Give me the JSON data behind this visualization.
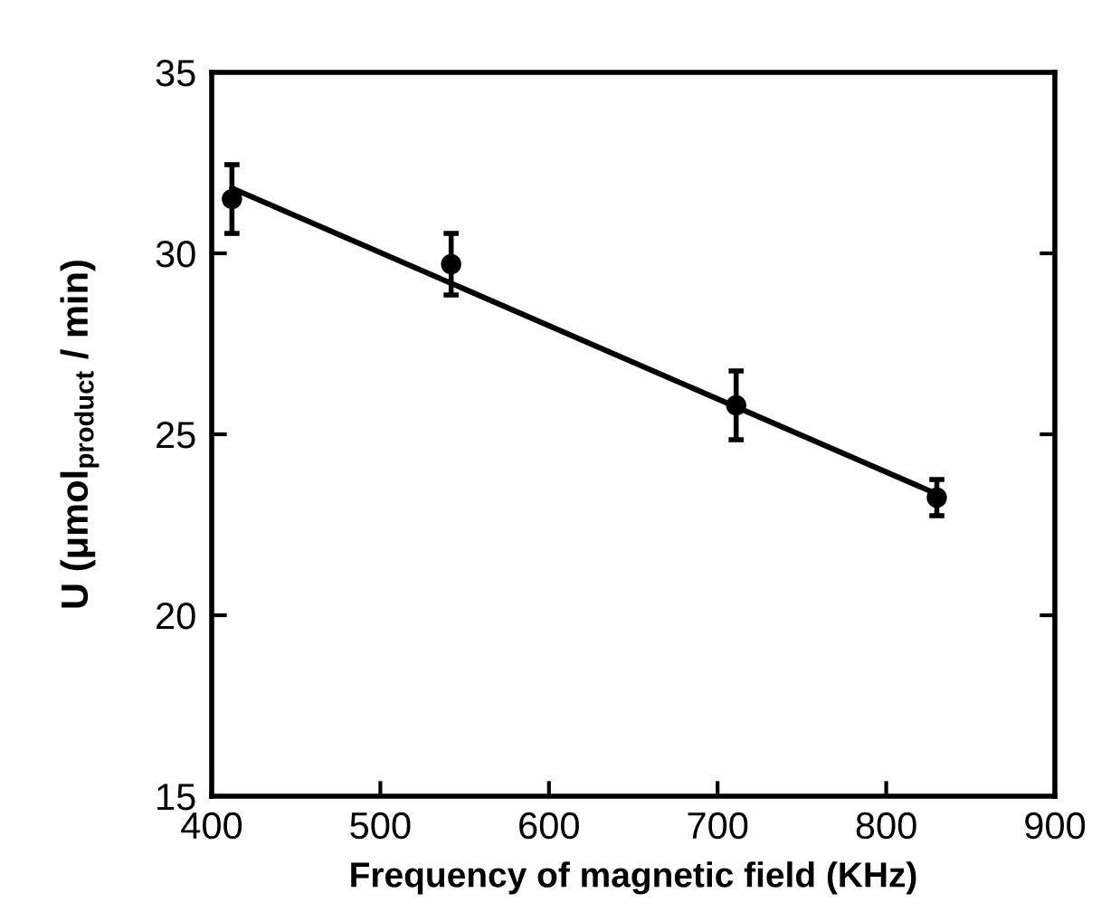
{
  "chart_data": {
    "type": "scatter",
    "xlabel": "Frequency of magnetic field (KHz)",
    "ylabel": "U (μmol$_{product}$ / min)",
    "xlim": [
      400,
      900
    ],
    "xticks": [
      400,
      500,
      600,
      700,
      800,
      900
    ],
    "ylim": [
      15,
      35
    ],
    "yticks": [
      15,
      20,
      25,
      30,
      35
    ],
    "grid": false,
    "legend": false,
    "series": [
      {
        "color": "#000000",
        "marker": "circle",
        "x": [
          412,
          542,
          711,
          830
        ],
        "values": [
          31.5,
          29.7,
          25.8,
          23.25
        ],
        "errors": [
          0.95,
          0.85,
          0.95,
          0.5
        ]
      },
      {
        "type": "line",
        "color": "#000000",
        "marker": "none",
        "line_style": "solid",
        "x": [
          412,
          830
        ],
        "values": [
          31.8,
          23.35
        ]
      }
    ]
  }
}
